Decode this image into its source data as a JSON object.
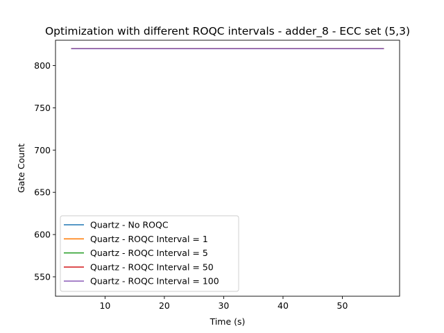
{
  "chart_data": {
    "type": "line",
    "title": "Optimization with different ROQC intervals - adder_8 - ECC set (5,3)",
    "xlabel": "Time (s)",
    "ylabel": "Gate Count",
    "xlim": [
      1.65,
      59.65
    ],
    "ylim": [
      527,
      830
    ],
    "xticks": [
      10,
      20,
      30,
      40,
      50
    ],
    "yticks": [
      550,
      600,
      650,
      700,
      750,
      800
    ],
    "grid": false,
    "legend_position": "lower-left",
    "series": [
      {
        "name": "Quartz - No ROQC",
        "color": "#1f77b4",
        "x": [
          4.3,
          57.0
        ],
        "y": [
          820,
          820
        ]
      },
      {
        "name": "Quartz - ROQC Interval = 1",
        "color": "#ff7f0e",
        "x": [
          4.3,
          57.0
        ],
        "y": [
          820,
          820
        ]
      },
      {
        "name": "Quartz - ROQC Interval = 5",
        "color": "#2ca02c",
        "x": [
          4.3,
          57.0
        ],
        "y": [
          820,
          820
        ]
      },
      {
        "name": "Quartz - ROQC Interval = 50",
        "color": "#d62728",
        "x": [
          4.3,
          57.0
        ],
        "y": [
          820,
          820
        ]
      },
      {
        "name": "Quartz - ROQC Interval = 100",
        "color": "#9467bd",
        "x": [
          4.3,
          57.0
        ],
        "y": [
          820,
          820
        ]
      }
    ]
  }
}
